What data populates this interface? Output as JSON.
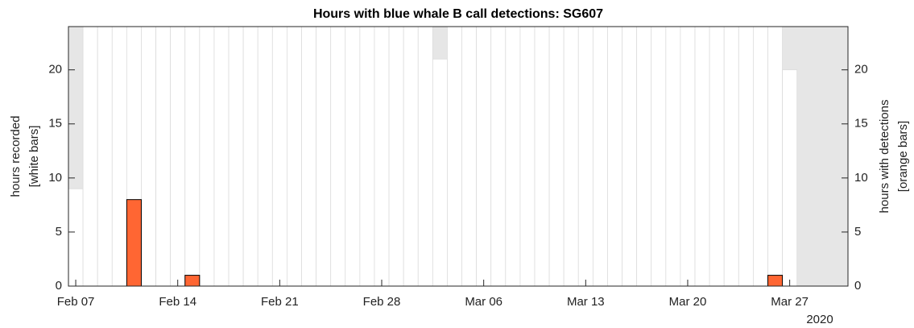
{
  "chart_data": {
    "type": "bar",
    "title": "Hours with blue whale B call detections: SG607",
    "ylabel": [
      "hours recorded",
      "[white bars]"
    ],
    "y2label": [
      "hours with detections",
      "[orange bars]"
    ],
    "x_year_label": "2020",
    "x": [
      "2020-02-07",
      "2020-02-08",
      "2020-02-09",
      "2020-02-10",
      "2020-02-11",
      "2020-02-12",
      "2020-02-13",
      "2020-02-14",
      "2020-02-15",
      "2020-02-16",
      "2020-02-17",
      "2020-02-18",
      "2020-02-19",
      "2020-02-20",
      "2020-02-21",
      "2020-02-22",
      "2020-02-23",
      "2020-02-24",
      "2020-02-25",
      "2020-02-26",
      "2020-02-27",
      "2020-02-28",
      "2020-02-29",
      "2020-03-01",
      "2020-03-02",
      "2020-03-03",
      "2020-03-04",
      "2020-03-05",
      "2020-03-06",
      "2020-03-07",
      "2020-03-08",
      "2020-03-09",
      "2020-03-10",
      "2020-03-11",
      "2020-03-12",
      "2020-03-13",
      "2020-03-14",
      "2020-03-15",
      "2020-03-16",
      "2020-03-17",
      "2020-03-18",
      "2020-03-19",
      "2020-03-20",
      "2020-03-21",
      "2020-03-22",
      "2020-03-23",
      "2020-03-24",
      "2020-03-25",
      "2020-03-26",
      "2020-03-27"
    ],
    "series": [
      {
        "color": "#ffffff",
        "values": [
          9,
          24,
          24,
          24,
          24,
          24,
          24,
          24,
          24,
          24,
          24,
          24,
          24,
          24,
          24,
          24,
          24,
          24,
          24,
          24,
          24,
          24,
          24,
          24,
          24,
          21,
          24,
          24,
          24,
          24,
          24,
          24,
          24,
          24,
          24,
          24,
          24,
          24,
          24,
          24,
          24,
          24,
          24,
          24,
          24,
          24,
          24,
          24,
          24,
          20
        ]
      },
      {
        "color": "#ff6633",
        "axis": "y2",
        "values": [
          0,
          0,
          0,
          0,
          8,
          0,
          0,
          0,
          1,
          0,
          0,
          0,
          0,
          0,
          0,
          0,
          0,
          0,
          0,
          0,
          0,
          0,
          0,
          0,
          0,
          0,
          0,
          0,
          0,
          0,
          0,
          0,
          0,
          0,
          0,
          0,
          0,
          0,
          0,
          0,
          0,
          0,
          0,
          0,
          0,
          0,
          0,
          0,
          1,
          0
        ]
      }
    ],
    "background_color": "#e6e6e6",
    "xlim": [
      "2020-02-06T12:00",
      "2020-03-31T00:00"
    ],
    "xticks": [
      {
        "value": "2020-02-07",
        "label": "Feb 07"
      },
      {
        "value": "2020-02-14",
        "label": "Feb 14"
      },
      {
        "value": "2020-02-21",
        "label": "Feb 21"
      },
      {
        "value": "2020-02-28",
        "label": "Feb 28"
      },
      {
        "value": "2020-03-06",
        "label": "Mar 06"
      },
      {
        "value": "2020-03-13",
        "label": "Mar 13"
      },
      {
        "value": "2020-03-20",
        "label": "Mar 20"
      },
      {
        "value": "2020-03-27",
        "label": "Mar 27"
      }
    ],
    "ylim": [
      0,
      24
    ],
    "yticks": [
      0,
      5,
      10,
      15,
      20
    ],
    "y2lim": [
      0,
      24
    ],
    "y2ticks": [
      0,
      5,
      10,
      15,
      20
    ]
  }
}
